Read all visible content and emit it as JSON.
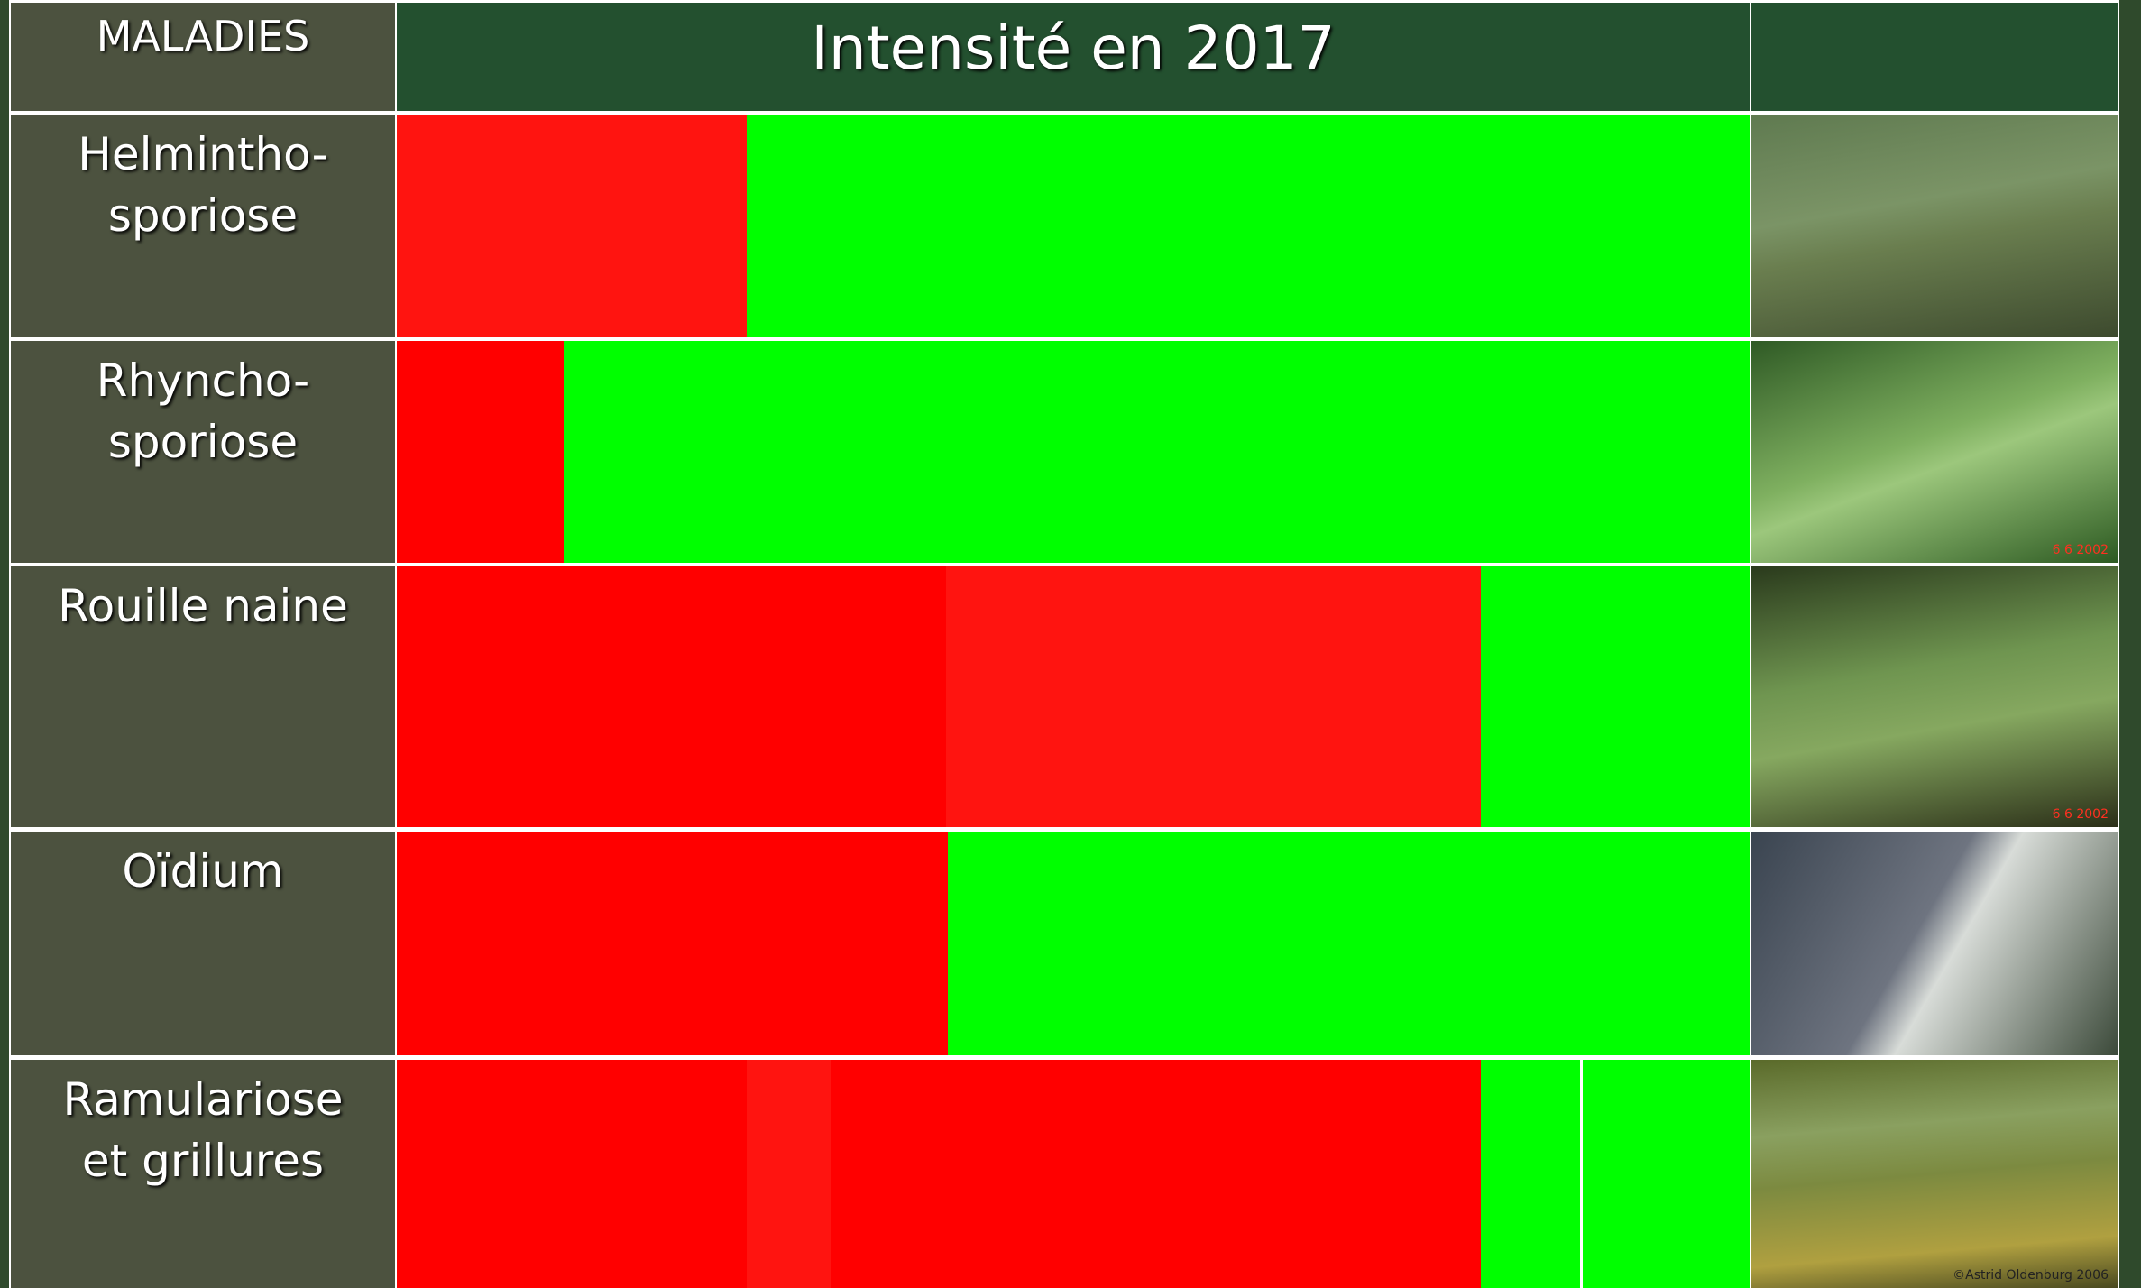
{
  "header": {
    "label_column": "MALADIES",
    "title": "Intensité en 2017"
  },
  "rows": [
    {
      "label": [
        "Helmintho-",
        "sporiose"
      ]
    },
    {
      "label": [
        "Rhyncho-",
        "sporiose"
      ],
      "photo_stamp": "6  6 2002"
    },
    {
      "label": [
        "Rouille naine"
      ],
      "photo_stamp": "6  6 2002"
    },
    {
      "label": [
        "Oïdium"
      ]
    },
    {
      "label": [
        "Ramulariose",
        "et grillures"
      ],
      "photo_stamp": "©Astrid Oldenburg 2006"
    }
  ]
}
